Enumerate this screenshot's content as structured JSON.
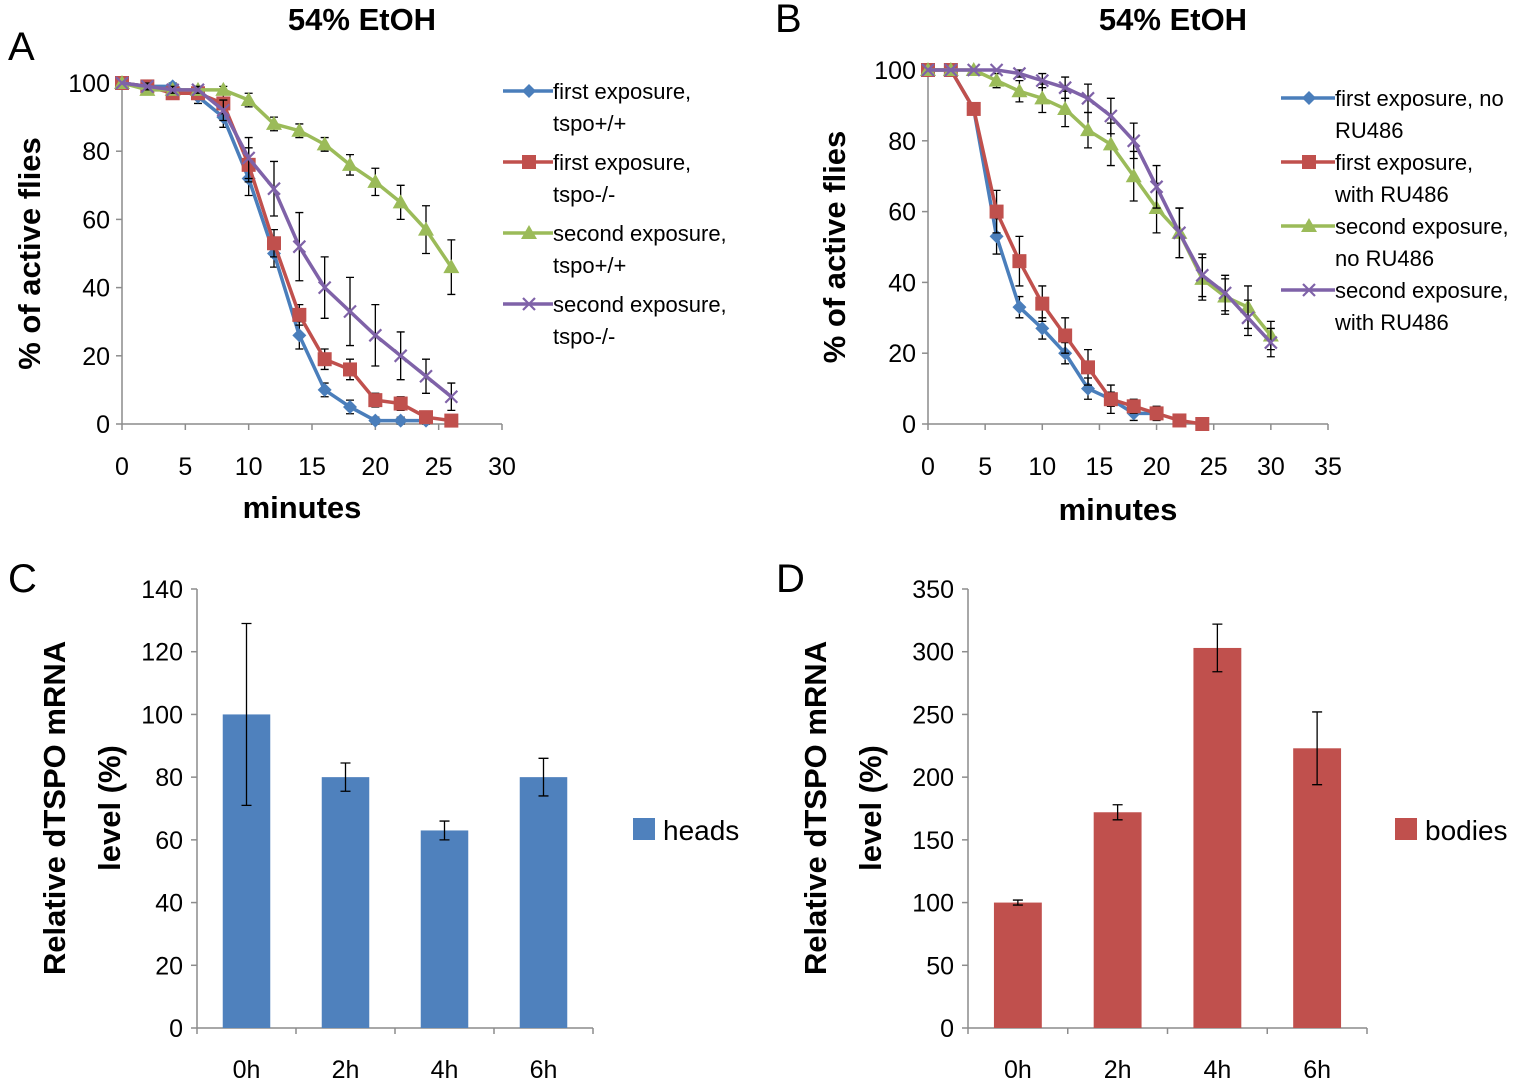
{
  "chart_data": [
    {
      "panel": "A",
      "type": "line",
      "title": "54% EtOH",
      "xlabel": "minutes",
      "ylabel": "% of active flies",
      "xlim": [
        0,
        30
      ],
      "ylim": [
        0,
        100
      ],
      "xticks": [
        "0",
        "5",
        "10",
        "15",
        "20",
        "25",
        "30"
      ],
      "yticks": [
        "0",
        "20",
        "40",
        "60",
        "80",
        "100"
      ],
      "grid": false,
      "legend_position": "right",
      "series": [
        {
          "legend_lines": [
            "first exposure,",
            "tspo+/+"
          ],
          "color": "#4a7ebb",
          "marker": "diamond",
          "x": [
            0,
            2,
            4,
            6,
            8,
            10,
            12,
            14,
            16,
            18,
            20,
            22,
            24
          ],
          "y": [
            100,
            99,
            99,
            96,
            90,
            72,
            50,
            26,
            10,
            5,
            1,
            1,
            1
          ],
          "err": [
            0,
            1,
            1,
            2,
            3,
            5,
            4,
            4,
            2,
            2,
            1,
            1,
            1
          ]
        },
        {
          "legend_lines": [
            "first exposure,",
            "tspo-/-"
          ],
          "color": "#c0504d",
          "marker": "square",
          "x": [
            0,
            2,
            4,
            6,
            8,
            10,
            12,
            14,
            16,
            18,
            20,
            22,
            24,
            26
          ],
          "y": [
            100,
            99,
            97,
            97,
            94,
            76,
            53,
            32,
            19,
            16,
            7,
            6,
            2,
            1
          ],
          "err": [
            0,
            1,
            1,
            1,
            3,
            5,
            4,
            3,
            3,
            3,
            2,
            2,
            1,
            1
          ]
        },
        {
          "legend_lines": [
            "second exposure,",
            "tspo+/+"
          ],
          "color": "#9bbb59",
          "marker": "triangle",
          "x": [
            0,
            2,
            4,
            6,
            8,
            10,
            12,
            14,
            16,
            18,
            20,
            22,
            24,
            26
          ],
          "y": [
            100,
            98,
            98,
            98,
            98,
            95,
            88,
            86,
            82,
            76,
            71,
            65,
            57,
            46
          ],
          "err": [
            0,
            1,
            1,
            1,
            1,
            2,
            2,
            2,
            2,
            3,
            4,
            5,
            7,
            8
          ]
        },
        {
          "legend_lines": [
            "second exposure,",
            "tspo-/-"
          ],
          "color": "#7f62a8",
          "marker": "x",
          "x": [
            0,
            2,
            4,
            6,
            8,
            10,
            12,
            14,
            16,
            18,
            20,
            22,
            24,
            26
          ],
          "y": [
            100,
            99,
            98,
            98,
            92,
            78,
            69,
            52,
            40,
            33,
            26,
            20,
            14,
            8
          ],
          "err": [
            0,
            1,
            1,
            1,
            3,
            6,
            8,
            10,
            9,
            10,
            9,
            7,
            5,
            4
          ]
        }
      ]
    },
    {
      "panel": "B",
      "type": "line",
      "title": "54% EtOH",
      "xlabel": "minutes",
      "ylabel": "% of active flies",
      "xlim": [
        0,
        35
      ],
      "ylim": [
        0,
        100
      ],
      "xticks": [
        "0",
        "5",
        "10",
        "15",
        "20",
        "25",
        "30",
        "35"
      ],
      "yticks": [
        "0",
        "20",
        "40",
        "60",
        "80",
        "100"
      ],
      "grid": false,
      "legend_position": "right",
      "series": [
        {
          "legend_lines": [
            "first exposure, no",
            "RU486"
          ],
          "color": "#4a7ebb",
          "marker": "diamond",
          "x": [
            0,
            2,
            4,
            6,
            8,
            10,
            12,
            14,
            16,
            18,
            20
          ],
          "y": [
            100,
            100,
            89,
            53,
            33,
            27,
            20,
            10,
            7,
            3,
            3
          ],
          "err": [
            0,
            0,
            1,
            5,
            3,
            3,
            3,
            3,
            2,
            2,
            1
          ]
        },
        {
          "legend_lines": [
            "first exposure,",
            "with RU486"
          ],
          "color": "#c0504d",
          "marker": "square",
          "x": [
            0,
            2,
            4,
            6,
            8,
            10,
            12,
            14,
            16,
            18,
            20,
            22,
            24
          ],
          "y": [
            100,
            100,
            89,
            60,
            46,
            34,
            25,
            16,
            7,
            5,
            3,
            1,
            0
          ],
          "err": [
            0,
            0,
            1,
            6,
            7,
            5,
            5,
            5,
            4,
            2,
            2,
            1,
            0
          ]
        },
        {
          "legend_lines": [
            "second exposure,",
            "no RU486"
          ],
          "color": "#9bbb59",
          "marker": "triangle",
          "x": [
            0,
            2,
            4,
            6,
            8,
            10,
            12,
            14,
            16,
            18,
            20,
            22,
            24,
            26,
            28,
            30
          ],
          "y": [
            100,
            100,
            100,
            97,
            94,
            92,
            89,
            83,
            79,
            70,
            61,
            54,
            41,
            36,
            33,
            25
          ],
          "err": [
            0,
            0,
            0,
            2,
            3,
            4,
            5,
            5,
            6,
            7,
            7,
            7,
            6,
            5,
            6,
            4
          ]
        },
        {
          "legend_lines": [
            "second exposure,",
            "with RU486"
          ],
          "color": "#7f62a8",
          "marker": "x",
          "x": [
            0,
            2,
            4,
            6,
            8,
            10,
            12,
            14,
            16,
            18,
            20,
            22,
            24,
            26,
            28,
            30
          ],
          "y": [
            100,
            100,
            100,
            100,
            99,
            97,
            95,
            92,
            87,
            80,
            67,
            54,
            42,
            37,
            30,
            23
          ],
          "err": [
            0,
            0,
            0,
            0,
            1,
            2,
            3,
            4,
            5,
            5,
            6,
            7,
            6,
            5,
            5,
            4
          ]
        }
      ]
    },
    {
      "panel": "C",
      "type": "bar",
      "title": "",
      "xlabel": "",
      "ylabel_lines": [
        "Relative dTSPO mRNA",
        "level (%)"
      ],
      "categories": [
        "0h",
        "2h",
        "4h",
        "6h"
      ],
      "ylim": [
        0,
        140
      ],
      "yticks": [
        "0",
        "20",
        "40",
        "60",
        "80",
        "100",
        "120",
        "140"
      ],
      "grid": false,
      "legend_position": "right",
      "series": [
        {
          "name": "heads",
          "color": "#4f81bd",
          "values": [
            100,
            80,
            63,
            80
          ],
          "err": [
            29,
            4.5,
            3,
            6
          ]
        }
      ]
    },
    {
      "panel": "D",
      "type": "bar",
      "title": "",
      "xlabel": "",
      "ylabel_lines": [
        "Relative dTSPO mRNA",
        "level (%)"
      ],
      "categories": [
        "0h",
        "2h",
        "4h",
        "6h"
      ],
      "ylim": [
        0,
        350
      ],
      "yticks": [
        "0",
        "50",
        "100",
        "150",
        "200",
        "250",
        "300",
        "350"
      ],
      "grid": false,
      "legend_position": "right",
      "series": [
        {
          "name": "bodies",
          "color": "#c0504d",
          "values": [
            100,
            172,
            303,
            223
          ],
          "err": [
            2,
            6,
            19,
            29
          ]
        }
      ]
    }
  ]
}
